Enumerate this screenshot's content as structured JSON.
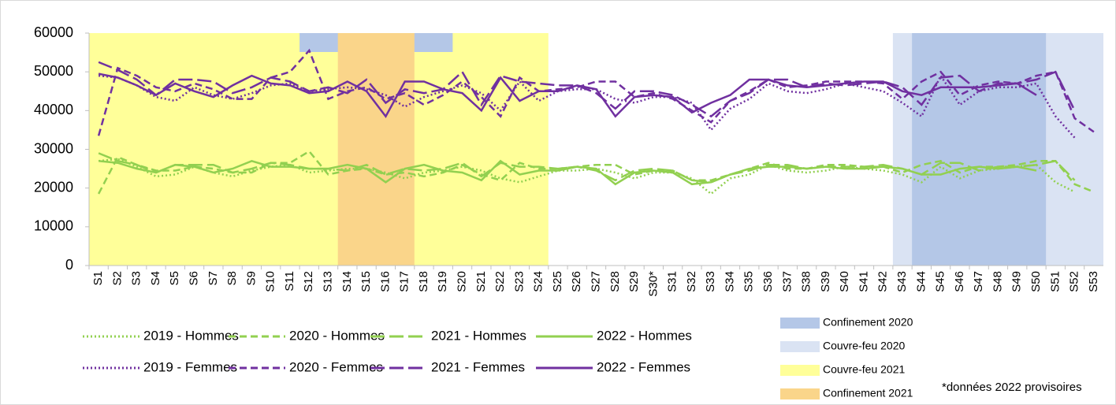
{
  "chart_data": {
    "type": "line",
    "categories": [
      "S1",
      "S2",
      "S3",
      "S4",
      "S5",
      "S6",
      "S7",
      "S8",
      "S9",
      "S10",
      "S11",
      "S12",
      "S13",
      "S14",
      "S15",
      "S16",
      "S17",
      "S18",
      "S19",
      "S20",
      "S21",
      "S22",
      "S23",
      "S24",
      "S25",
      "S26",
      "S27",
      "S28",
      "S29",
      "S30*",
      "S31",
      "S32",
      "S33",
      "S34",
      "S35",
      "S36",
      "S37",
      "S38",
      "S39",
      "S40",
      "S41",
      "S42",
      "S43",
      "S44",
      "S45",
      "S46",
      "S47",
      "S48",
      "S49",
      "S50",
      "S51",
      "S52",
      "S53"
    ],
    "ylim": [
      0,
      60000
    ],
    "yticks": [
      0,
      10000,
      20000,
      30000,
      40000,
      50000,
      60000
    ],
    "grid": false,
    "series": [
      {
        "name": "2019 - Hommes",
        "color": "#92d050",
        "dash": "dotted",
        "values": [
          27000,
          27500,
          25500,
          23000,
          23500,
          25500,
          24000,
          23000,
          24500,
          25500,
          26000,
          24000,
          24500,
          25000,
          25000,
          24000,
          22500,
          24000,
          24500,
          25500,
          24500,
          22500,
          21500,
          23000,
          24500,
          24500,
          25000,
          24000,
          22500,
          24000,
          24000,
          22500,
          18500,
          22500,
          23500,
          26000,
          24500,
          24000,
          24500,
          25500,
          25000,
          24500,
          23500,
          21500,
          25500,
          22500,
          24500,
          25000,
          25500,
          26000,
          21500,
          19000,
          null
        ]
      },
      {
        "name": "2020 - Hommes",
        "color": "#92d050",
        "dash": "dashed",
        "values": [
          18500,
          28000,
          26000,
          24500,
          24500,
          25500,
          25000,
          24000,
          24000,
          26500,
          26500,
          29500,
          23500,
          24500,
          25000,
          23500,
          24000,
          23000,
          24000,
          26000,
          23500,
          22000,
          26500,
          25000,
          25000,
          25500,
          26000,
          26000,
          23500,
          24500,
          24500,
          22000,
          22000,
          23500,
          25000,
          26500,
          25000,
          25000,
          26000,
          26000,
          25500,
          25500,
          24000,
          26000,
          27000,
          24000,
          25500,
          25500,
          26000,
          27000,
          27000,
          21000,
          19000
        ]
      },
      {
        "name": "2021 - Hommes",
        "color": "#92d050",
        "dash": "longdash",
        "values": [
          29000,
          27000,
          26000,
          24000,
          26000,
          26000,
          26000,
          24000,
          25000,
          26500,
          26000,
          25000,
          25000,
          24500,
          26000,
          23500,
          25000,
          24500,
          25000,
          26500,
          23000,
          26500,
          25500,
          25500,
          25000,
          25500,
          24500,
          22000,
          24500,
          25000,
          24500,
          22000,
          21500,
          23500,
          24500,
          26000,
          26000,
          25000,
          25500,
          25500,
          25500,
          26000,
          25000,
          23500,
          26500,
          26500,
          24500,
          25500,
          25500,
          26000,
          27000,
          22000,
          null
        ]
      },
      {
        "name": "2022 - Hommes",
        "color": "#92d050",
        "dash": "solid",
        "values": [
          27000,
          26500,
          25000,
          24000,
          26000,
          25500,
          24000,
          25000,
          27000,
          25500,
          25500,
          25000,
          25000,
          26000,
          25000,
          21500,
          25000,
          26000,
          24500,
          24000,
          22000,
          27000,
          23500,
          24500,
          24500,
          25500,
          25000,
          21000,
          24000,
          24500,
          24000,
          21000,
          21500,
          23500,
          25000,
          25500,
          25500,
          25000,
          25500,
          25000,
          25000,
          25500,
          25000,
          23500,
          23500,
          25000,
          25500,
          25000,
          25500,
          24500,
          null,
          null,
          null
        ]
      },
      {
        "name": "2019 - Femmes",
        "color": "#7030a0",
        "dash": "dotted",
        "values": [
          49000,
          48500,
          46500,
          43500,
          42500,
          46000,
          44000,
          43000,
          44500,
          46500,
          47000,
          45000,
          45500,
          46000,
          45500,
          44000,
          41000,
          43500,
          45000,
          46500,
          44500,
          40000,
          47500,
          42500,
          45000,
          45500,
          45500,
          43000,
          42000,
          43500,
          43500,
          42000,
          35000,
          40500,
          43000,
          47000,
          45000,
          44500,
          45500,
          47000,
          46000,
          45000,
          42000,
          38500,
          49000,
          41500,
          45000,
          46000,
          46000,
          47000,
          38500,
          33000,
          null
        ]
      },
      {
        "name": "2020 - Femmes",
        "color": "#7030a0",
        "dash": "dashed",
        "values": [
          33500,
          51000,
          49000,
          46000,
          45000,
          47000,
          45500,
          43000,
          43000,
          48500,
          50000,
          55500,
          43000,
          45000,
          46000,
          43000,
          44500,
          41500,
          44000,
          47500,
          43500,
          38500,
          48500,
          45000,
          45500,
          46000,
          47500,
          47500,
          43500,
          44500,
          43000,
          40000,
          37000,
          42500,
          45000,
          48000,
          46000,
          46500,
          47500,
          47500,
          47500,
          47000,
          43000,
          47500,
          50000,
          44000,
          46500,
          47500,
          47000,
          49000,
          50000,
          38000,
          34500
        ]
      },
      {
        "name": "2021 - Femmes",
        "color": "#7030a0",
        "dash": "longdash",
        "values": [
          52500,
          50500,
          48000,
          44000,
          48000,
          48000,
          47500,
          44500,
          46000,
          48500,
          47500,
          45000,
          46000,
          44500,
          48000,
          42000,
          45500,
          44500,
          45500,
          50000,
          41500,
          49000,
          47500,
          47000,
          46500,
          46500,
          44500,
          40500,
          45000,
          45000,
          44000,
          41500,
          38500,
          42500,
          44500,
          48000,
          48000,
          46000,
          47000,
          46500,
          47000,
          47500,
          46000,
          41500,
          48500,
          49000,
          45000,
          47000,
          47000,
          48000,
          50000,
          40000,
          null
        ]
      },
      {
        "name": "2022 - Femmes",
        "color": "#7030a0",
        "dash": "solid",
        "values": [
          49500,
          48500,
          46500,
          44000,
          47000,
          45000,
          43500,
          46500,
          49000,
          47000,
          46500,
          44500,
          45000,
          47500,
          45000,
          38500,
          47500,
          47500,
          45500,
          44500,
          40000,
          48500,
          42500,
          45000,
          45000,
          46500,
          45500,
          38500,
          43500,
          44000,
          43500,
          39500,
          42000,
          44000,
          48000,
          48000,
          46500,
          46000,
          46500,
          47000,
          47500,
          47500,
          45000,
          44000,
          46000,
          46000,
          46000,
          46500,
          47000,
          44000,
          null,
          null,
          null
        ]
      }
    ],
    "regions": [
      {
        "name": "Confinement 2020",
        "color": "#b4c7e7",
        "spans": [
          {
            "start": "S12",
            "end": "S19",
            "extent": "top"
          },
          {
            "start": "S44",
            "end": "S50",
            "extent": "full"
          }
        ]
      },
      {
        "name": "Couvre-feu 2020",
        "color": "#dae3f3",
        "spans": [
          {
            "start": "S43",
            "end": "S53",
            "extent": "full"
          }
        ]
      },
      {
        "name": "Couvre-feu 2021",
        "color": "#ffff99",
        "spans": [
          {
            "start": "S1",
            "end": "S24",
            "extent": "full"
          }
        ]
      },
      {
        "name": "Confinement 2021",
        "color": "#fad58a",
        "spans": [
          {
            "start": "S14",
            "end": "S17",
            "extent": "full"
          }
        ]
      }
    ],
    "footnote": "*données 2022 provisoires"
  }
}
